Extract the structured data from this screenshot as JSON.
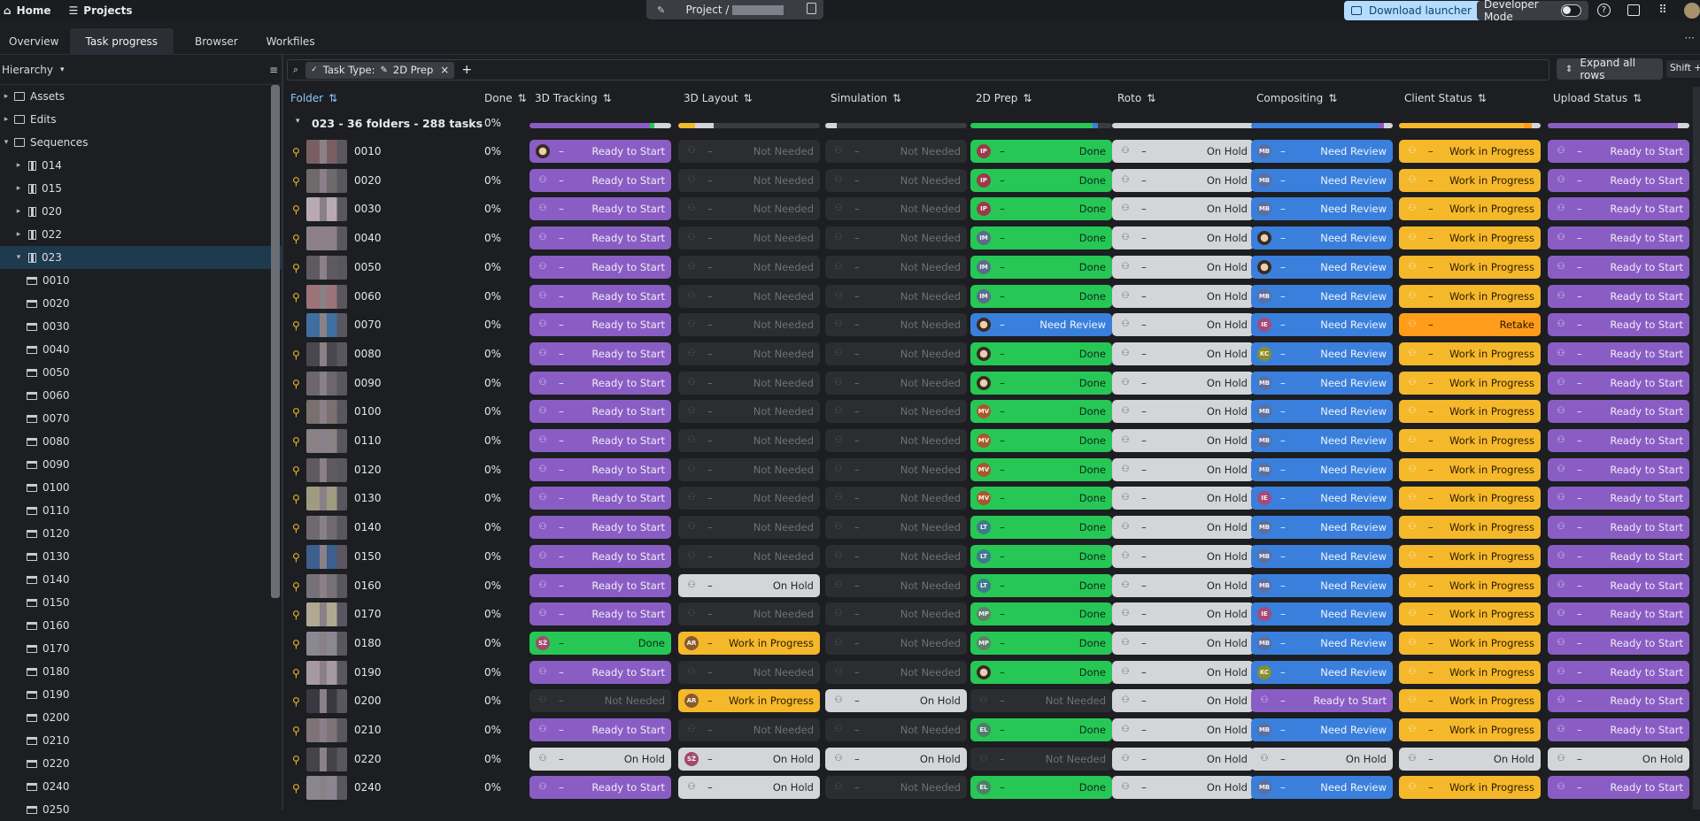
{
  "topbar": {
    "home_label": "Home",
    "projects_label": "Projects",
    "project_title": "Project /",
    "download_label": "Download launcher",
    "devmode_label": "Developer Mode"
  },
  "tabs": [
    "Overview",
    "Task progress",
    "Browser",
    "Workfiles"
  ],
  "sidebar": {
    "hierarchy_label": "Hierarchy",
    "tree": [
      {
        "label": "Assets",
        "kind": "folder",
        "level": 0
      },
      {
        "label": "Edits",
        "kind": "folder",
        "level": 0
      },
      {
        "label": "Sequences",
        "kind": "folder",
        "level": 0,
        "open": true
      },
      {
        "label": "014",
        "kind": "seq",
        "level": 1
      },
      {
        "label": "015",
        "kind": "seq",
        "level": 1
      },
      {
        "label": "020",
        "kind": "seq",
        "level": 1
      },
      {
        "label": "022",
        "kind": "seq",
        "level": 1
      },
      {
        "label": "023",
        "kind": "seq",
        "level": 1,
        "open": true,
        "selected": true
      },
      {
        "label": "0010",
        "kind": "shot",
        "level": 2
      },
      {
        "label": "0020",
        "kind": "shot",
        "level": 2
      },
      {
        "label": "0030",
        "kind": "shot",
        "level": 2
      },
      {
        "label": "0040",
        "kind": "shot",
        "level": 2
      },
      {
        "label": "0050",
        "kind": "shot",
        "level": 2
      },
      {
        "label": "0060",
        "kind": "shot",
        "level": 2
      },
      {
        "label": "0070",
        "kind": "shot",
        "level": 2
      },
      {
        "label": "0080",
        "kind": "shot",
        "level": 2
      },
      {
        "label": "0090",
        "kind": "shot",
        "level": 2
      },
      {
        "label": "0100",
        "kind": "shot",
        "level": 2
      },
      {
        "label": "0110",
        "kind": "shot",
        "level": 2
      },
      {
        "label": "0120",
        "kind": "shot",
        "level": 2
      },
      {
        "label": "0130",
        "kind": "shot",
        "level": 2
      },
      {
        "label": "0140",
        "kind": "shot",
        "level": 2
      },
      {
        "label": "0150",
        "kind": "shot",
        "level": 2
      },
      {
        "label": "0160",
        "kind": "shot",
        "level": 2
      },
      {
        "label": "0170",
        "kind": "shot",
        "level": 2
      },
      {
        "label": "0180",
        "kind": "shot",
        "level": 2
      },
      {
        "label": "0190",
        "kind": "shot",
        "level": 2
      },
      {
        "label": "0200",
        "kind": "shot",
        "level": 2
      },
      {
        "label": "0210",
        "kind": "shot",
        "level": 2
      },
      {
        "label": "0220",
        "kind": "shot",
        "level": 2
      },
      {
        "label": "0240",
        "kind": "shot",
        "level": 2
      },
      {
        "label": "0250",
        "kind": "shot",
        "level": 2
      }
    ]
  },
  "filter": {
    "chip_label": "Task Type:",
    "chip_value": "2D Prep",
    "expand_label": "Expand all rows",
    "expand_shortcut": "Shift + E"
  },
  "columns": {
    "folder": "Folder",
    "done": "Done",
    "tasks": [
      "3D Tracking",
      "3D Layout",
      "Simulation",
      "2D Prep",
      "Roto",
      "Compositing",
      "Client Status",
      "Upload Status"
    ]
  },
  "group": {
    "label": "023 - 36 folders - 288 tasks",
    "done": "0%"
  },
  "status_colors": {
    "Ready to Start": "#8a5dc4",
    "Not Needed": "#2b2d31",
    "Done": "#27c756",
    "On Hold": "#d4d5d8",
    "Need Review": "#3a7fdc",
    "Work in Progress": "#f5b82a",
    "Retake": "#ff9c1a"
  },
  "rows": [
    {
      "name": "0010",
      "done": "0%",
      "cells": [
        [
          "Ready to Start",
          "img"
        ],
        [
          "Not Needed",
          ""
        ],
        [
          "Not Needed",
          ""
        ],
        [
          "Done",
          "IP"
        ],
        [
          "On Hold",
          ""
        ],
        [
          "Need Review",
          "MB"
        ],
        [
          "Work in Progress",
          ""
        ],
        [
          "Ready to Start",
          ""
        ]
      ]
    },
    {
      "name": "0020",
      "done": "0%",
      "cells": [
        [
          "Ready to Start",
          ""
        ],
        [
          "Not Needed",
          ""
        ],
        [
          "Not Needed",
          ""
        ],
        [
          "Done",
          "IP"
        ],
        [
          "On Hold",
          ""
        ],
        [
          "Need Review",
          "MB"
        ],
        [
          "Work in Progress",
          ""
        ],
        [
          "Ready to Start",
          ""
        ]
      ]
    },
    {
      "name": "0030",
      "done": "0%",
      "cells": [
        [
          "Ready to Start",
          ""
        ],
        [
          "Not Needed",
          ""
        ],
        [
          "Not Needed",
          ""
        ],
        [
          "Done",
          "IP"
        ],
        [
          "On Hold",
          ""
        ],
        [
          "Need Review",
          "MB"
        ],
        [
          "Work in Progress",
          ""
        ],
        [
          "Ready to Start",
          ""
        ]
      ]
    },
    {
      "name": "0040",
      "done": "0%",
      "cells": [
        [
          "Ready to Start",
          ""
        ],
        [
          "Not Needed",
          ""
        ],
        [
          "Not Needed",
          ""
        ],
        [
          "Done",
          "IM"
        ],
        [
          "On Hold",
          ""
        ],
        [
          "Need Review",
          "img"
        ],
        [
          "Work in Progress",
          ""
        ],
        [
          "Ready to Start",
          ""
        ]
      ]
    },
    {
      "name": "0050",
      "done": "0%",
      "cells": [
        [
          "Ready to Start",
          ""
        ],
        [
          "Not Needed",
          ""
        ],
        [
          "Not Needed",
          ""
        ],
        [
          "Done",
          "IM"
        ],
        [
          "On Hold",
          ""
        ],
        [
          "Need Review",
          "img"
        ],
        [
          "Work in Progress",
          ""
        ],
        [
          "Ready to Start",
          ""
        ]
      ]
    },
    {
      "name": "0060",
      "done": "0%",
      "cells": [
        [
          "Ready to Start",
          ""
        ],
        [
          "Not Needed",
          ""
        ],
        [
          "Not Needed",
          ""
        ],
        [
          "Done",
          "IM"
        ],
        [
          "On Hold",
          ""
        ],
        [
          "Need Review",
          "MB"
        ],
        [
          "Work in Progress",
          ""
        ],
        [
          "Ready to Start",
          ""
        ]
      ]
    },
    {
      "name": "0070",
      "done": "0%",
      "cells": [
        [
          "Ready to Start",
          ""
        ],
        [
          "Not Needed",
          ""
        ],
        [
          "Not Needed",
          ""
        ],
        [
          "Need Review",
          "img"
        ],
        [
          "On Hold",
          ""
        ],
        [
          "Need Review",
          "IE"
        ],
        [
          "Retake",
          ""
        ],
        [
          "Ready to Start",
          ""
        ]
      ]
    },
    {
      "name": "0080",
      "done": "0%",
      "cells": [
        [
          "Ready to Start",
          ""
        ],
        [
          "Not Needed",
          ""
        ],
        [
          "Not Needed",
          ""
        ],
        [
          "Done",
          "img"
        ],
        [
          "On Hold",
          ""
        ],
        [
          "Need Review",
          "KC"
        ],
        [
          "Work in Progress",
          ""
        ],
        [
          "Ready to Start",
          ""
        ]
      ]
    },
    {
      "name": "0090",
      "done": "0%",
      "cells": [
        [
          "Ready to Start",
          ""
        ],
        [
          "Not Needed",
          ""
        ],
        [
          "Not Needed",
          ""
        ],
        [
          "Done",
          "img"
        ],
        [
          "On Hold",
          ""
        ],
        [
          "Need Review",
          "MB"
        ],
        [
          "Work in Progress",
          ""
        ],
        [
          "Ready to Start",
          ""
        ]
      ]
    },
    {
      "name": "0100",
      "done": "0%",
      "cells": [
        [
          "Ready to Start",
          ""
        ],
        [
          "Not Needed",
          ""
        ],
        [
          "Not Needed",
          ""
        ],
        [
          "Done",
          "MV"
        ],
        [
          "On Hold",
          ""
        ],
        [
          "Need Review",
          "MB"
        ],
        [
          "Work in Progress",
          ""
        ],
        [
          "Ready to Start",
          ""
        ]
      ]
    },
    {
      "name": "0110",
      "done": "0%",
      "cells": [
        [
          "Ready to Start",
          ""
        ],
        [
          "Not Needed",
          ""
        ],
        [
          "Not Needed",
          ""
        ],
        [
          "Done",
          "MV"
        ],
        [
          "On Hold",
          ""
        ],
        [
          "Need Review",
          "MB"
        ],
        [
          "Work in Progress",
          ""
        ],
        [
          "Ready to Start",
          ""
        ]
      ]
    },
    {
      "name": "0120",
      "done": "0%",
      "cells": [
        [
          "Ready to Start",
          ""
        ],
        [
          "Not Needed",
          ""
        ],
        [
          "Not Needed",
          ""
        ],
        [
          "Done",
          "MV"
        ],
        [
          "On Hold",
          ""
        ],
        [
          "Need Review",
          "MB"
        ],
        [
          "Work in Progress",
          ""
        ],
        [
          "Ready to Start",
          ""
        ]
      ]
    },
    {
      "name": "0130",
      "done": "0%",
      "cells": [
        [
          "Ready to Start",
          ""
        ],
        [
          "Not Needed",
          ""
        ],
        [
          "Not Needed",
          ""
        ],
        [
          "Done",
          "MV"
        ],
        [
          "On Hold",
          ""
        ],
        [
          "Need Review",
          "IE"
        ],
        [
          "Work in Progress",
          ""
        ],
        [
          "Ready to Start",
          ""
        ]
      ]
    },
    {
      "name": "0140",
      "done": "0%",
      "cells": [
        [
          "Ready to Start",
          ""
        ],
        [
          "Not Needed",
          ""
        ],
        [
          "Not Needed",
          ""
        ],
        [
          "Done",
          "LT"
        ],
        [
          "On Hold",
          ""
        ],
        [
          "Need Review",
          "MB"
        ],
        [
          "Work in Progress",
          ""
        ],
        [
          "Ready to Start",
          ""
        ]
      ]
    },
    {
      "name": "0150",
      "done": "0%",
      "cells": [
        [
          "Ready to Start",
          ""
        ],
        [
          "Not Needed",
          ""
        ],
        [
          "Not Needed",
          ""
        ],
        [
          "Done",
          "LT"
        ],
        [
          "On Hold",
          ""
        ],
        [
          "Need Review",
          "MB"
        ],
        [
          "Work in Progress",
          ""
        ],
        [
          "Ready to Start",
          ""
        ]
      ]
    },
    {
      "name": "0160",
      "done": "0%",
      "cells": [
        [
          "Ready to Start",
          ""
        ],
        [
          "On Hold",
          ""
        ],
        [
          "Not Needed",
          ""
        ],
        [
          "Done",
          "LT"
        ],
        [
          "On Hold",
          ""
        ],
        [
          "Need Review",
          "MB"
        ],
        [
          "Work in Progress",
          ""
        ],
        [
          "Ready to Start",
          ""
        ]
      ]
    },
    {
      "name": "0170",
      "done": "0%",
      "cells": [
        [
          "Ready to Start",
          ""
        ],
        [
          "Not Needed",
          ""
        ],
        [
          "Not Needed",
          ""
        ],
        [
          "Done",
          "MP"
        ],
        [
          "On Hold",
          ""
        ],
        [
          "Need Review",
          "IE"
        ],
        [
          "Work in Progress",
          ""
        ],
        [
          "Ready to Start",
          ""
        ]
      ]
    },
    {
      "name": "0180",
      "done": "0%",
      "cells": [
        [
          "Done",
          "SŽ"
        ],
        [
          "Work in Progress",
          "AR"
        ],
        [
          "Not Needed",
          ""
        ],
        [
          "Done",
          "MP"
        ],
        [
          "On Hold",
          ""
        ],
        [
          "Need Review",
          "MB"
        ],
        [
          "Work in Progress",
          ""
        ],
        [
          "Ready to Start",
          ""
        ]
      ]
    },
    {
      "name": "0190",
      "done": "0%",
      "cells": [
        [
          "Ready to Start",
          ""
        ],
        [
          "Not Needed",
          ""
        ],
        [
          "Not Needed",
          ""
        ],
        [
          "Done",
          "img"
        ],
        [
          "On Hold",
          ""
        ],
        [
          "Need Review",
          "KC"
        ],
        [
          "Work in Progress",
          ""
        ],
        [
          "Ready to Start",
          ""
        ]
      ]
    },
    {
      "name": "0200",
      "done": "0%",
      "cells": [
        [
          "Not Needed",
          ""
        ],
        [
          "Work in Progress",
          "AR"
        ],
        [
          "On Hold",
          ""
        ],
        [
          "Not Needed",
          ""
        ],
        [
          "On Hold",
          ""
        ],
        [
          "Ready to Start",
          ""
        ],
        [
          "Work in Progress",
          ""
        ],
        [
          "Ready to Start",
          ""
        ]
      ]
    },
    {
      "name": "0210",
      "done": "0%",
      "cells": [
        [
          "Ready to Start",
          ""
        ],
        [
          "Not Needed",
          ""
        ],
        [
          "Not Needed",
          ""
        ],
        [
          "Done",
          "EL"
        ],
        [
          "On Hold",
          ""
        ],
        [
          "Need Review",
          "MB"
        ],
        [
          "Work in Progress",
          ""
        ],
        [
          "Ready to Start",
          ""
        ]
      ]
    },
    {
      "name": "0220",
      "done": "0%",
      "cells": [
        [
          "On Hold",
          ""
        ],
        [
          "On Hold",
          "SŽ"
        ],
        [
          "On Hold",
          ""
        ],
        [
          "Not Needed",
          ""
        ],
        [
          "On Hold",
          ""
        ],
        [
          "On Hold",
          ""
        ],
        [
          "On Hold",
          ""
        ],
        [
          "On Hold",
          ""
        ]
      ]
    },
    {
      "name": "0240",
      "done": "0%",
      "cells": [
        [
          "Ready to Start",
          ""
        ],
        [
          "On Hold",
          ""
        ],
        [
          "Not Needed",
          ""
        ],
        [
          "Done",
          "EL"
        ],
        [
          "On Hold",
          ""
        ],
        [
          "Need Review",
          "MB"
        ],
        [
          "Work in Progress",
          ""
        ],
        [
          "Ready to Start",
          ""
        ]
      ]
    }
  ],
  "avatar_colors": {
    "IP": "#9b3a4a",
    "IM": "#5b6b8a",
    "MB": "#5c6f9e",
    "IE": "#a54b7a",
    "KC": "#8a8d2a",
    "MV": "#a8582a",
    "LT": "#3f7a8a",
    "MP": "#5e7f6a",
    "SŽ": "#a04a6e",
    "AR": "#8b5a2a",
    "EL": "#4d7f6a"
  },
  "thumb_colors": [
    "#7a5f62",
    "#6e6a6c",
    "#b8aab0",
    "#8d8089",
    "#5f5a60",
    "#9a7478",
    "#3e6f9e",
    "#4a4750",
    "#6b6670",
    "#7a7070",
    "#8a8285",
    "#5e5a5e",
    "#a09a80",
    "#6f6a70",
    "#3c5f8e",
    "#777278",
    "#b0a890",
    "#8a8890",
    "#a69aa0",
    "#3a3840",
    "#7e7478",
    "#454248",
    "#8b8590"
  ]
}
